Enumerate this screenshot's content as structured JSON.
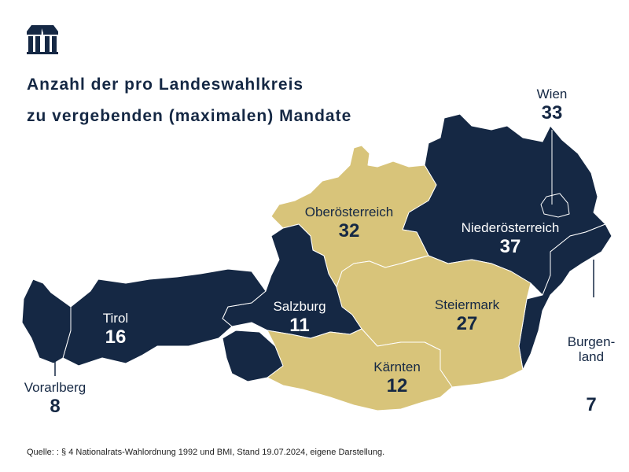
{
  "title_lines": [
    "Anzahl der pro Landeswahlkreis",
    "zu vergebenden (maximalen) Mandate"
  ],
  "logo": "parliament-building-logo",
  "colors": {
    "navy": "#152844",
    "gold": "#d8c47a",
    "border": "#ffffff"
  },
  "states": [
    {
      "name": "Vorarlberg",
      "mandates": "8",
      "color": "navy"
    },
    {
      "name": "Tirol",
      "mandates": "16",
      "color": "navy"
    },
    {
      "name": "Salzburg",
      "mandates": "11",
      "color": "navy"
    },
    {
      "name": "Oberösterreich",
      "mandates": "32",
      "color": "gold"
    },
    {
      "name": "Niederösterreich",
      "mandates": "37",
      "color": "navy"
    },
    {
      "name": "Wien",
      "mandates": "33",
      "color": "navy"
    },
    {
      "name": "Burgen-\nland",
      "mandates": "7",
      "color": "navy"
    },
    {
      "name": "Steiermark",
      "mandates": "27",
      "color": "gold"
    },
    {
      "name": "Kärnten",
      "mandates": "12",
      "color": "gold"
    }
  ],
  "source": "Quelle: : § 4 Nationalrats-Wahlordnung 1992 und BMI, Stand 19.07.2024, eigene Darstellung."
}
